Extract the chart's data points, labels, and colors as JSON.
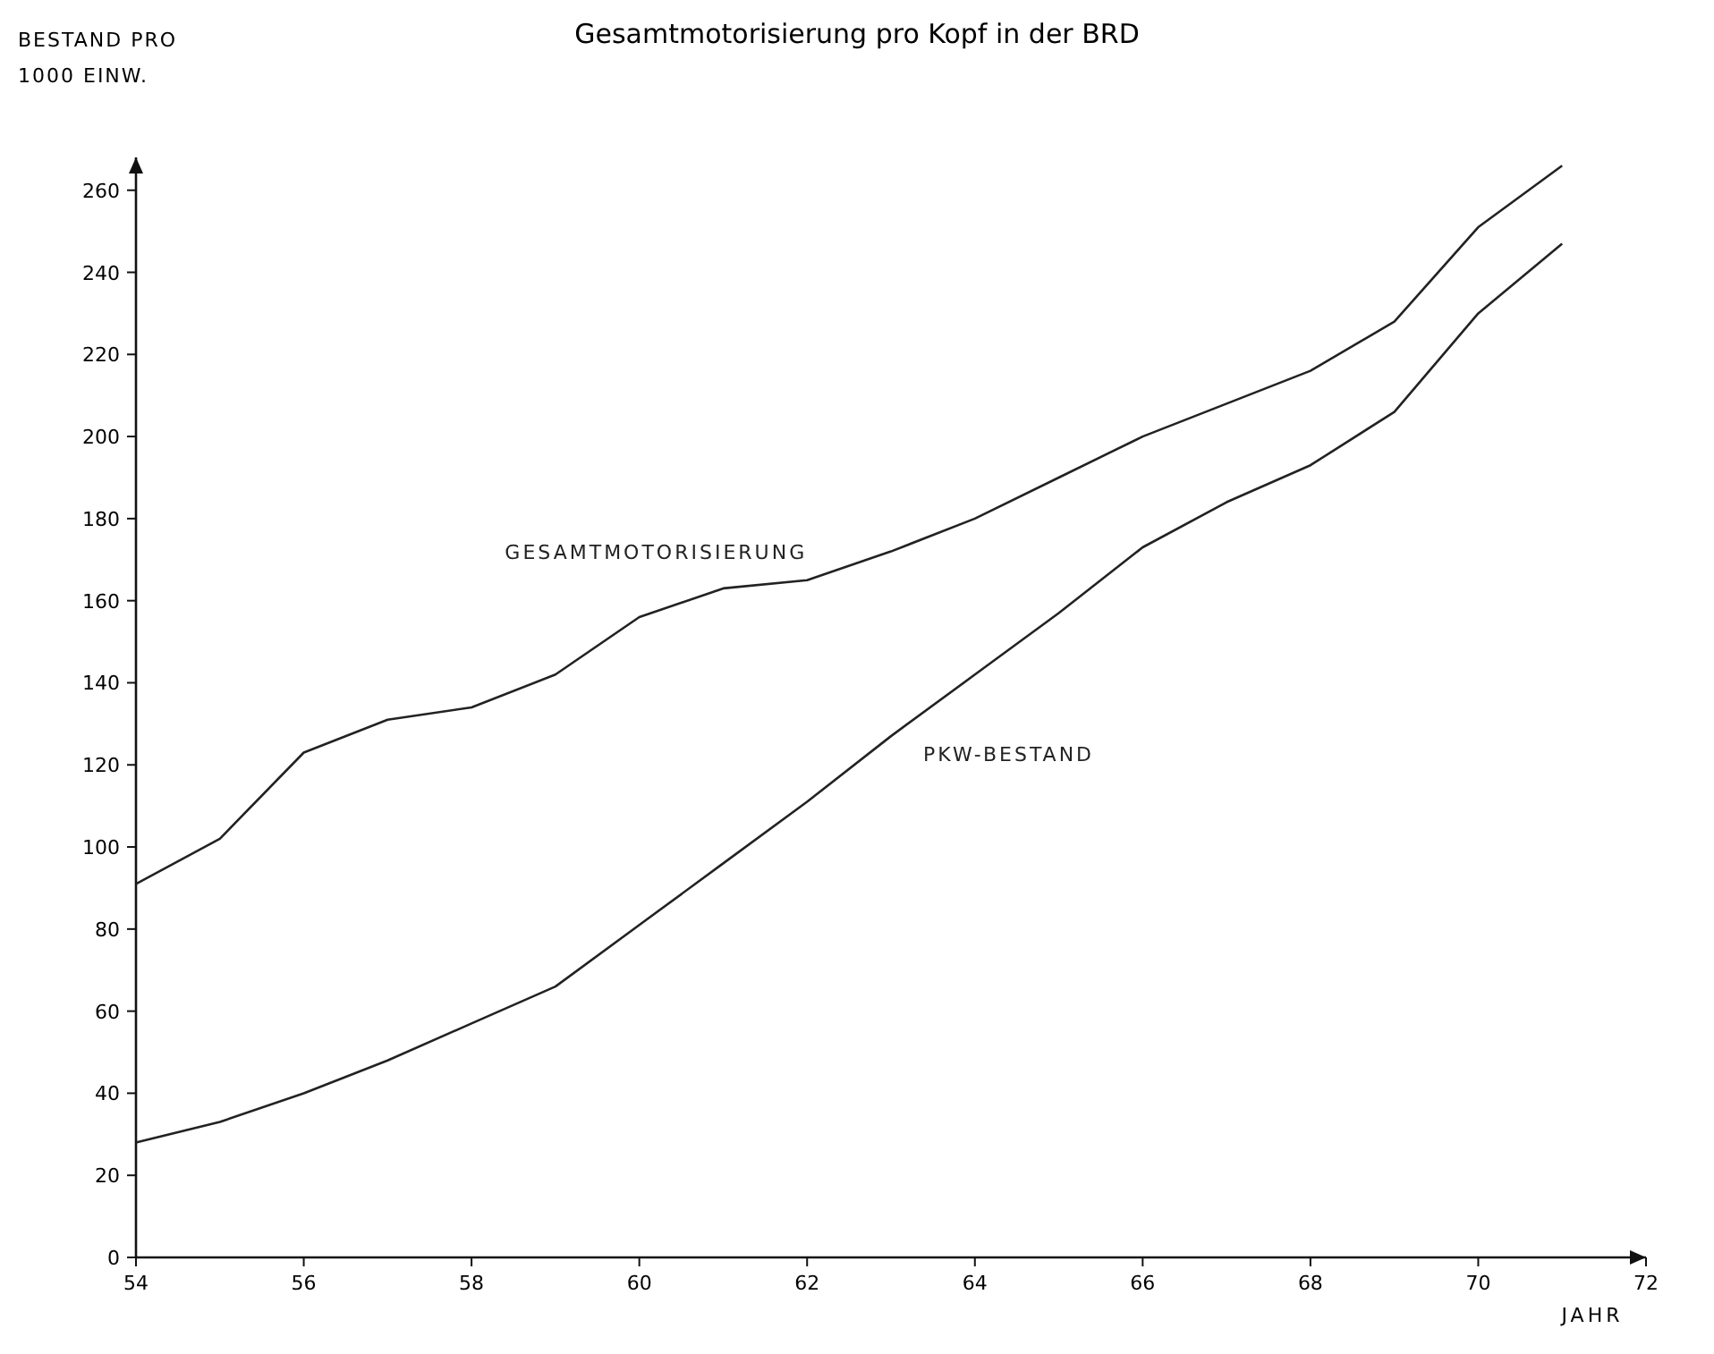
{
  "chart_data": {
    "type": "line",
    "title": "Gesamtmotorisierung pro Kopf in der BRD",
    "ylabel": "BESTAND PRO 1000 EINW.",
    "xlabel": "JAHR",
    "x": [
      54,
      55,
      56,
      57,
      58,
      59,
      60,
      61,
      62,
      63,
      64,
      65,
      66,
      67,
      68,
      69,
      70,
      71
    ],
    "series": [
      {
        "name": "GESAMTMOTORISIERUNG",
        "color": "#222222",
        "values": [
          91,
          102,
          123,
          131,
          134,
          142,
          156,
          163,
          165,
          172,
          180,
          190,
          200,
          208,
          216,
          228,
          251,
          266
        ]
      },
      {
        "name": "PKW-BESTAND",
        "color": "#222222",
        "values": [
          28,
          33,
          40,
          48,
          57,
          66,
          81,
          96,
          111,
          127,
          142,
          157,
          173,
          184,
          193,
          206,
          230,
          247
        ]
      }
    ],
    "xlim": [
      54,
      72
    ],
    "xticks": [
      54,
      56,
      58,
      60,
      62,
      64,
      66,
      68,
      70,
      72
    ],
    "ylim": [
      0,
      268
    ],
    "yticks": [
      0,
      20,
      40,
      60,
      80,
      100,
      120,
      140,
      160,
      180,
      200,
      220,
      240,
      260
    ],
    "grid": false,
    "marker": "none",
    "line_style": "solid"
  }
}
